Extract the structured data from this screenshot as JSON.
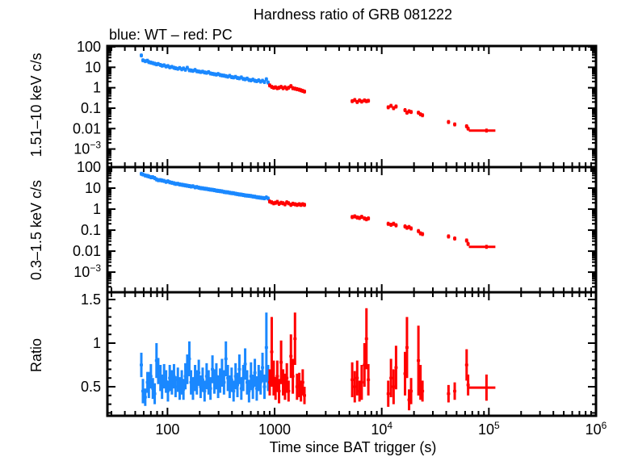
{
  "chart_data": {
    "type": "scatter",
    "title": "Hardness ratio of GRB 081222",
    "subtitle": "blue: WT – red: PC",
    "xlabel": "Time since BAT trigger (s)",
    "xscale": "log",
    "xlim": [
      27.5,
      1000000
    ],
    "xticks": [
      {
        "value": 100,
        "label": "100"
      },
      {
        "value": 1000,
        "label": "1000"
      },
      {
        "value": 10000,
        "label": "10",
        "sup": "4"
      },
      {
        "value": 100000,
        "label": "10",
        "sup": "5"
      },
      {
        "value": 1000000,
        "label": "10",
        "sup": "6"
      }
    ],
    "colors": {
      "WT": "#1a88ff",
      "PC": "#ff0000"
    },
    "panels": [
      {
        "ylabel": "1.51–10 keV c/s",
        "yscale": "log",
        "ylim": [
          0.00013,
          110
        ],
        "field": "hard",
        "yticks": [
          {
            "value": 100,
            "label": "100"
          },
          {
            "value": 10,
            "label": "10"
          },
          {
            "value": 1,
            "label": "1"
          },
          {
            "value": 0.1,
            "label": "0.1"
          },
          {
            "value": 0.01,
            "label": "0.01"
          },
          {
            "value": 0.001,
            "label": "10",
            "sup": "−3"
          }
        ]
      },
      {
        "ylabel": "0.3–1.5 keV c/s",
        "yscale": "log",
        "ylim": [
          0.00011,
          100
        ],
        "field": "soft",
        "yticks": [
          {
            "value": 100,
            "label": "100"
          },
          {
            "value": 10,
            "label": "10"
          },
          {
            "value": 1,
            "label": "1"
          },
          {
            "value": 0.1,
            "label": "0.1"
          },
          {
            "value": 0.01,
            "label": "0.01"
          },
          {
            "value": 0.001,
            "label": "10",
            "sup": "−3"
          }
        ]
      },
      {
        "ylabel": "Ratio",
        "yscale": "linear",
        "ylim": [
          0.167,
          1.583
        ],
        "field": "ratio",
        "yticks": [
          {
            "value": 0.5,
            "label": "0.5"
          },
          {
            "value": 1,
            "label": "1"
          },
          {
            "value": 1.5,
            "label": "1.5"
          }
        ]
      }
    ],
    "series": [
      {
        "name": "WT",
        "columns": [
          "t",
          "hard",
          "soft",
          "ratio",
          "ratio_err"
        ],
        "points": [
          [
            57,
            38,
            48,
            0.75,
            0.14
          ],
          [
            59,
            22,
            45,
            0.45,
            0.14
          ],
          [
            62,
            20,
            40,
            0.38,
            0.1
          ],
          [
            65,
            21,
            38,
            0.55,
            0.12
          ],
          [
            67,
            18,
            36,
            0.52,
            0.15
          ],
          [
            70,
            17,
            33,
            0.62,
            0.14
          ],
          [
            73,
            16,
            33,
            0.48,
            0.12
          ],
          [
            76,
            15,
            30,
            0.42,
            0.12
          ],
          [
            79,
            14,
            26,
            0.8,
            0.2
          ],
          [
            82,
            14.5,
            24,
            0.68,
            0.15
          ],
          [
            86,
            13,
            24,
            0.6,
            0.15
          ],
          [
            89,
            12,
            23,
            0.5,
            0.14
          ],
          [
            93,
            12.5,
            22,
            0.62,
            0.14
          ],
          [
            97,
            11,
            20,
            0.56,
            0.13
          ],
          [
            101,
            11.5,
            21,
            0.45,
            0.12
          ],
          [
            105,
            10,
            19,
            0.6,
            0.15
          ],
          [
            110,
            10.5,
            18,
            0.55,
            0.14
          ],
          [
            115,
            9.5,
            17,
            0.62,
            0.14
          ],
          [
            119,
            9,
            16,
            0.5,
            0.12
          ],
          [
            125,
            8.5,
            16,
            0.58,
            0.14
          ],
          [
            130,
            9.2,
            15,
            0.48,
            0.13
          ],
          [
            136,
            8,
            14.5,
            0.55,
            0.14
          ],
          [
            141,
            8.8,
            14,
            0.47,
            0.12
          ],
          [
            147,
            7.6,
            13.5,
            0.62,
            0.15
          ],
          [
            153,
            9.5,
            13,
            0.7,
            0.17
          ],
          [
            160,
            7.2,
            12.5,
            0.82,
            0.2
          ],
          [
            166,
            7,
            12,
            0.55,
            0.14
          ],
          [
            173,
            6.7,
            12.2,
            0.48,
            0.13
          ],
          [
            181,
            7.4,
            11,
            0.6,
            0.15
          ],
          [
            188,
            6.4,
            11.2,
            0.55,
            0.14
          ],
          [
            196,
            6.2,
            10.5,
            0.66,
            0.15
          ],
          [
            204,
            5.9,
            10,
            0.5,
            0.13
          ],
          [
            213,
            6.1,
            9.8,
            0.58,
            0.14
          ],
          [
            222,
            5.6,
            9.4,
            0.45,
            0.12
          ],
          [
            232,
            5.4,
            9.2,
            0.62,
            0.15
          ],
          [
            242,
            5.8,
            8.8,
            0.55,
            0.14
          ],
          [
            252,
            5,
            8.5,
            0.48,
            0.13
          ],
          [
            263,
            4.8,
            8.3,
            0.7,
            0.16
          ],
          [
            274,
            4.6,
            8,
            0.56,
            0.14
          ],
          [
            286,
            4.4,
            7.6,
            0.62,
            0.15
          ],
          [
            297,
            4.7,
            7.4,
            0.5,
            0.13
          ],
          [
            310,
            4.2,
            7.2,
            0.57,
            0.14
          ],
          [
            323,
            4,
            7,
            0.66,
            0.16
          ],
          [
            337,
            3.9,
            6.6,
            0.55,
            0.14
          ],
          [
            351,
            3.7,
            6.4,
            0.82,
            0.2
          ],
          [
            366,
            3.5,
            6.3,
            0.6,
            0.15
          ],
          [
            381,
            3.8,
            6,
            0.5,
            0.13
          ],
          [
            397,
            3.3,
            5.8,
            0.58,
            0.14
          ],
          [
            414,
            3.2,
            5.7,
            0.45,
            0.12
          ],
          [
            432,
            3.4,
            5.4,
            0.62,
            0.15
          ],
          [
            450,
            3,
            5.2,
            0.52,
            0.14
          ],
          [
            469,
            2.9,
            5,
            0.7,
            0.17
          ],
          [
            489,
            3.2,
            4.9,
            0.48,
            0.13
          ],
          [
            510,
            2.7,
            4.7,
            0.6,
            0.15
          ],
          [
            531,
            2.6,
            4.5,
            0.76,
            0.18
          ],
          [
            554,
            2.8,
            4.4,
            0.55,
            0.14
          ],
          [
            577,
            2.4,
            4.3,
            0.45,
            0.13
          ],
          [
            602,
            2.3,
            4.2,
            0.62,
            0.16
          ],
          [
            627,
            2.5,
            4,
            0.5,
            0.14
          ],
          [
            654,
            2.2,
            3.9,
            0.66,
            0.16
          ],
          [
            681,
            2.1,
            3.7,
            0.48,
            0.14
          ],
          [
            710,
            2.3,
            3.6,
            0.6,
            0.15
          ],
          [
            740,
            2,
            3.5,
            0.55,
            0.14
          ],
          [
            771,
            2.2,
            3.4,
            0.72,
            0.17
          ],
          [
            804,
            1.9,
            3.3,
            0.5,
            0.14
          ],
          [
            838,
            2.6,
            3.6,
            0.95,
            0.4
          ],
          [
            870,
            1.8,
            3.2,
            0.6,
            0.15
          ]
        ]
      },
      {
        "name": "PC",
        "columns": [
          "t",
          "hard",
          "soft",
          "ratio",
          "ratio_err"
        ],
        "points": [
          [
            900,
            1.3,
            2.3,
            0.55,
            0.15
          ],
          [
            940,
            1.1,
            2.1,
            0.9,
            0.4
          ],
          [
            980,
            1.0,
            1.9,
            0.6,
            0.2
          ],
          [
            1020,
            1.05,
            2.0,
            0.48,
            0.13
          ],
          [
            1060,
            0.95,
            2.2,
            0.62,
            0.18
          ],
          [
            1100,
            1.0,
            1.8,
            0.45,
            0.14
          ],
          [
            1150,
            1.1,
            2.0,
            0.78,
            0.25
          ],
          [
            1200,
            0.95,
            1.9,
            0.55,
            0.15
          ],
          [
            1250,
            1.05,
            1.7,
            0.5,
            0.15
          ],
          [
            1300,
            0.9,
            2.1,
            0.6,
            0.17
          ],
          [
            1350,
            1.0,
            1.9,
            0.45,
            0.12
          ],
          [
            1420,
            1.2,
            1.6,
            0.85,
            0.25
          ],
          [
            1480,
            0.95,
            1.8,
            0.62,
            0.2
          ],
          [
            1550,
            0.9,
            1.7,
            1.05,
            0.3
          ],
          [
            1620,
            0.85,
            1.6,
            0.5,
            0.15
          ],
          [
            1700,
            0.8,
            1.7,
            0.52,
            0.14
          ],
          [
            1760,
            0.75,
            1.6,
            0.45,
            0.12
          ],
          [
            1830,
            0.7,
            1.7,
            0.55,
            0.15
          ],
          [
            1900,
            0.65,
            1.6,
            0.4,
            0.1
          ],
          [
            5300,
            0.22,
            0.42,
            0.58,
            0.2
          ],
          [
            5600,
            0.25,
            0.45,
            0.5,
            0.18
          ],
          [
            5900,
            0.2,
            0.4,
            0.6,
            0.2
          ],
          [
            6200,
            0.24,
            0.38,
            0.45,
            0.12
          ],
          [
            6500,
            0.21,
            0.43,
            0.55,
            0.2
          ],
          [
            6900,
            0.24,
            0.36,
            0.75,
            0.25
          ],
          [
            7200,
            0.22,
            0.33,
            1.05,
            0.35
          ],
          [
            7500,
            0.23,
            0.36,
            0.58,
            0.18
          ],
          [
            11500,
            0.11,
            0.2,
            0.42,
            0.15
          ],
          [
            12200,
            0.13,
            0.18,
            0.6,
            0.22
          ],
          [
            12900,
            0.1,
            0.2,
            0.5,
            0.2
          ],
          [
            13600,
            0.12,
            0.17,
            0.72,
            0.25
          ],
          [
            16500,
            0.08,
            0.15,
            0.65,
            0.25
          ],
          [
            17200,
            0.06,
            0.13,
            0.95,
            0.35
          ],
          [
            18000,
            0.07,
            0.14,
            0.35,
            0.12
          ],
          [
            18800,
            0.065,
            0.12,
            0.45,
            0.15
          ],
          [
            22000,
            0.06,
            0.09,
            0.8,
            0.4
          ],
          [
            23000,
            0.05,
            0.07,
            0.55,
            0.2
          ],
          [
            24000,
            0.045,
            0.065,
            0.45,
            0.12
          ],
          [
            42000,
            0.021,
            0.05,
            0.42,
            0.1
          ],
          [
            48000,
            0.016,
            0.04,
            0.45,
            0.1
          ],
          [
            62000,
            0.013,
            0.032,
            0.75,
            0.18
          ],
          [
            64000,
            0.01,
            0.022,
            0.52,
            0.12
          ]
        ],
        "wide_point": {
          "t": 95000,
          "t_lo": 65000,
          "t_hi": 115000,
          "hard": 0.008,
          "soft": 0.016,
          "ratio": 0.49,
          "ratio_err": 0.15
        }
      }
    ]
  }
}
